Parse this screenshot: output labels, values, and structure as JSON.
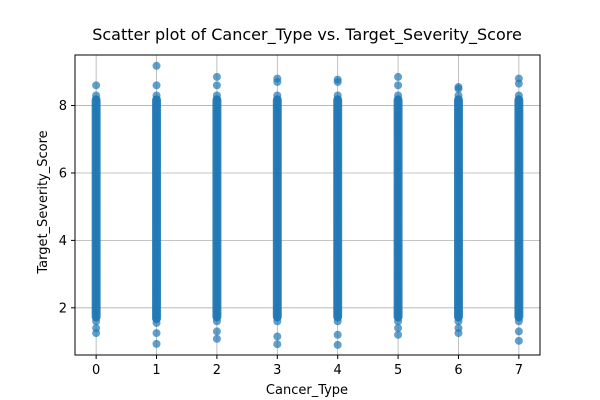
{
  "chart_data": {
    "type": "scatter",
    "title": "Scatter plot of Cancer_Type vs. Target_Severity_Score",
    "xlabel": "Cancer_Type",
    "ylabel": "Target_Severity_Score",
    "xlim": [
      -0.35,
      7.35
    ],
    "ylim": [
      0.6,
      9.5
    ],
    "xticks": [
      0,
      1,
      2,
      3,
      4,
      5,
      6,
      7
    ],
    "yticks": [
      2,
      4,
      6,
      8
    ],
    "grid": true,
    "marker_color": "#1f77b4",
    "series": [
      {
        "x": [
          0,
          1,
          2,
          3,
          4,
          5,
          6,
          7
        ],
        "y_min": [
          1.25,
          0.93,
          1.08,
          0.92,
          0.9,
          1.2,
          1.25,
          1.02
        ],
        "y_max": [
          8.6,
          9.18,
          8.85,
          8.8,
          8.77,
          8.85,
          8.55,
          8.8
        ],
        "y_dense_min": [
          1.6,
          1.55,
          1.6,
          1.6,
          1.6,
          1.6,
          1.6,
          1.6
        ],
        "y_dense_max": [
          8.3,
          8.3,
          8.3,
          8.3,
          8.3,
          8.3,
          8.3,
          8.3
        ],
        "outliers_high": [
          [
            8.6
          ],
          [
            8.6,
            9.18
          ],
          [
            8.85,
            8.6
          ],
          [
            8.8,
            8.7
          ],
          [
            8.77,
            8.7
          ],
          [
            8.85,
            8.6
          ],
          [
            8.55,
            8.5
          ],
          [
            8.8,
            8.65
          ]
        ],
        "outliers_low": [
          [
            1.4,
            1.25
          ],
          [
            1.25,
            0.93
          ],
          [
            1.3,
            1.08
          ],
          [
            1.15,
            0.92
          ],
          [
            1.2,
            0.9
          ],
          [
            1.4,
            1.2
          ],
          [
            1.4,
            1.25
          ],
          [
            1.3,
            1.02
          ]
        ]
      }
    ]
  }
}
